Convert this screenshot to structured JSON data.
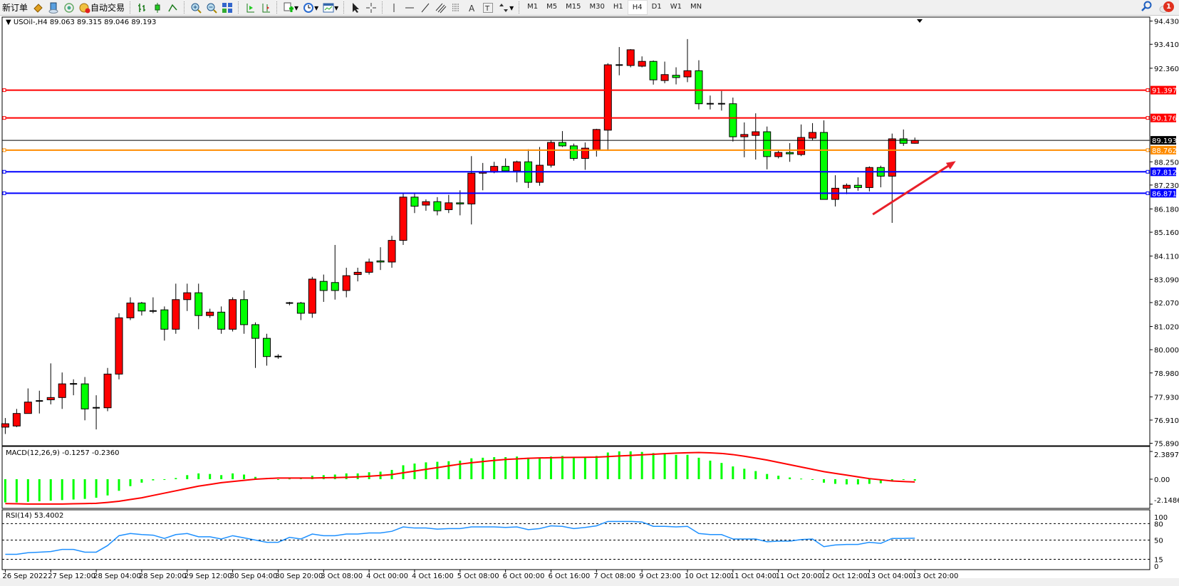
{
  "toolbar": {
    "new_order_label": "新订单",
    "auto_trading_label": "自动交易",
    "icons": [
      "market-watch-icon",
      "data-window-icon",
      "signals-icon",
      "bar-chart-icon",
      "candlestick-chart-icon",
      "line-chart-icon",
      "zoom-in-icon",
      "zoom-out-icon",
      "tile-windows-icon",
      "auto-scroll-icon",
      "chart-shift-icon",
      "indicators-icon",
      "periods-icon",
      "templates-icon",
      "cursor-icon",
      "crosshair-icon",
      "vertical-line-icon",
      "horizontal-line-icon",
      "trendline-icon",
      "equidistant-channel-icon",
      "fibonacci-icon",
      "text-icon",
      "text-label-icon",
      "arrows-icon"
    ],
    "timeframes": [
      "M1",
      "M5",
      "M15",
      "M30",
      "H1",
      "H4",
      "D1",
      "W1",
      "MN"
    ],
    "active_timeframe": "H4",
    "notification_count": "1"
  },
  "chart": {
    "header": "USOil-,H4  89.063 89.315 89.046 89.193",
    "colors": {
      "bull": "#ff0000",
      "bear": "#00ff00",
      "outline": "#000000"
    },
    "price_ticks": [
      "94.430",
      "93.410",
      "92.360",
      "88.250",
      "87.230",
      "86.180",
      "85.160",
      "84.110",
      "83.090",
      "82.070",
      "81.020",
      "80.000",
      "78.980",
      "77.930",
      "76.910",
      "75.890"
    ],
    "price_range": [
      75.89,
      94.43
    ],
    "levels": [
      {
        "price": 91.397,
        "label": "91.397",
        "color": "#ff0000"
      },
      {
        "price": 90.176,
        "label": "90.176",
        "color": "#ff0000"
      },
      {
        "price": 89.193,
        "label": "89.193",
        "color": "#000000"
      },
      {
        "price": 88.762,
        "label": "88.762",
        "color": "#ff8c00"
      },
      {
        "price": 87.812,
        "label": "87.812",
        "color": "#0000ff"
      },
      {
        "price": 86.871,
        "label": "86.871",
        "color": "#0000ff"
      }
    ],
    "arrow_color": "#e8202a",
    "time_labels": [
      "26 Sep 2022",
      "27 Sep 12:00",
      "28 Sep 04:00",
      "28 Sep 20:00",
      "29 Sep 12:00",
      "30 Sep 04:00",
      "30 Sep 20:00",
      "3 Oct 08:00",
      "4 Oct 00:00",
      "4 Oct 16:00",
      "5 Oct 08:00",
      "6 Oct 00:00",
      "6 Oct 16:00",
      "7 Oct 08:00",
      "9 Oct 23:00",
      "10 Oct 12:00",
      "11 Oct 04:00",
      "11 Oct 20:00",
      "12 Oct 12:00",
      "13 Oct 04:00",
      "13 Oct 20:00"
    ]
  },
  "chart_data": {
    "type": "candlestick",
    "symbol": "USOil-",
    "timeframe": "H4",
    "ohlc_format": [
      "open",
      "high",
      "low",
      "close"
    ],
    "ohlc": [
      [
        76.6,
        77.0,
        76.3,
        76.75
      ],
      [
        76.65,
        77.4,
        76.6,
        77.2
      ],
      [
        77.2,
        78.3,
        77.2,
        77.7
      ],
      [
        77.75,
        78.2,
        77.2,
        77.75
      ],
      [
        77.8,
        79.4,
        77.6,
        77.9
      ],
      [
        77.9,
        79.0,
        77.4,
        78.5
      ],
      [
        78.5,
        78.7,
        78.0,
        78.5
      ],
      [
        78.5,
        78.8,
        76.9,
        77.4
      ],
      [
        77.45,
        78.0,
        76.5,
        77.45
      ],
      [
        77.45,
        79.2,
        77.3,
        78.93
      ],
      [
        78.93,
        81.6,
        78.7,
        81.4
      ],
      [
        81.4,
        82.3,
        81.3,
        82.05
      ],
      [
        82.05,
        82.1,
        81.5,
        81.7
      ],
      [
        81.7,
        82.3,
        81.6,
        81.7
      ],
      [
        81.75,
        81.9,
        80.4,
        80.9
      ],
      [
        80.9,
        82.9,
        80.7,
        82.2
      ],
      [
        82.2,
        82.9,
        81.7,
        82.5
      ],
      [
        82.5,
        82.9,
        80.9,
        81.5
      ],
      [
        81.5,
        81.8,
        81.4,
        81.65
      ],
      [
        81.65,
        81.9,
        80.7,
        80.9
      ],
      [
        80.9,
        82.3,
        80.8,
        82.2
      ],
      [
        82.2,
        82.6,
        80.7,
        81.1
      ],
      [
        81.1,
        81.2,
        79.2,
        80.5
      ],
      [
        80.5,
        80.7,
        79.3,
        79.7
      ],
      [
        79.7,
        79.8,
        79.6,
        79.7
      ],
      [
        82.05,
        82.1,
        81.95,
        82.05
      ],
      [
        82.05,
        82.1,
        81.3,
        81.6
      ],
      [
        81.6,
        83.2,
        81.4,
        83.1
      ],
      [
        83.0,
        83.3,
        82.1,
        82.6
      ],
      [
        82.95,
        84.6,
        82.2,
        82.6
      ],
      [
        82.6,
        83.6,
        82.3,
        83.25
      ],
      [
        83.3,
        83.6,
        83.0,
        83.4
      ],
      [
        83.4,
        84.0,
        83.3,
        83.85
      ],
      [
        83.9,
        84.5,
        83.5,
        83.85
      ],
      [
        83.85,
        85.0,
        83.6,
        84.8
      ],
      [
        84.8,
        86.9,
        84.6,
        86.7
      ],
      [
        86.7,
        86.9,
        86.0,
        86.3
      ],
      [
        86.35,
        86.6,
        86.1,
        86.5
      ],
      [
        86.5,
        86.7,
        85.9,
        86.1
      ],
      [
        86.15,
        86.8,
        86.0,
        86.45
      ],
      [
        86.45,
        87.0,
        85.9,
        86.4
      ],
      [
        86.4,
        88.5,
        85.5,
        87.75
      ],
      [
        87.75,
        88.2,
        87.0,
        87.8
      ],
      [
        87.8,
        88.25,
        87.75,
        88.05
      ],
      [
        88.05,
        88.4,
        87.8,
        87.85
      ],
      [
        87.85,
        88.3,
        87.35,
        88.25
      ],
      [
        88.25,
        88.8,
        87.1,
        87.35
      ],
      [
        87.35,
        88.9,
        87.2,
        88.1
      ],
      [
        88.1,
        89.2,
        88.0,
        89.1
      ],
      [
        89.1,
        89.6,
        88.9,
        88.95
      ],
      [
        88.95,
        89.05,
        88.3,
        88.4
      ],
      [
        88.4,
        89.1,
        87.9,
        88.85
      ],
      [
        88.78,
        89.7,
        88.48,
        89.67
      ],
      [
        89.64,
        92.58,
        88.73,
        92.51
      ],
      [
        92.5,
        93.29,
        92.05,
        92.5
      ],
      [
        92.48,
        93.2,
        92.4,
        93.17
      ],
      [
        92.45,
        92.88,
        92.4,
        92.66
      ],
      [
        92.66,
        92.7,
        91.64,
        91.85
      ],
      [
        91.82,
        92.65,
        91.7,
        92.08
      ],
      [
        92.05,
        92.4,
        91.65,
        91.95
      ],
      [
        91.98,
        93.64,
        91.75,
        92.25
      ],
      [
        92.25,
        92.71,
        90.55,
        90.8
      ],
      [
        90.8,
        91.16,
        90.55,
        90.8
      ],
      [
        90.8,
        91.36,
        90.5,
        90.8
      ],
      [
        90.8,
        91.07,
        89.14,
        89.35
      ],
      [
        89.35,
        89.98,
        88.45,
        89.45
      ],
      [
        89.41,
        90.38,
        88.35,
        89.57
      ],
      [
        89.57,
        89.8,
        87.92,
        88.48
      ],
      [
        88.48,
        88.75,
        88.4,
        88.66
      ],
      [
        88.66,
        89.07,
        88.25,
        88.6
      ],
      [
        88.57,
        89.89,
        88.5,
        89.32
      ],
      [
        89.29,
        89.95,
        89.2,
        89.54
      ],
      [
        89.54,
        90.07,
        86.6,
        86.6
      ],
      [
        86.6,
        87.66,
        86.29,
        87.09
      ],
      [
        87.09,
        87.3,
        86.83,
        87.22
      ],
      [
        87.22,
        87.57,
        86.98,
        87.12
      ],
      [
        87.12,
        88.05,
        86.95,
        88.0
      ],
      [
        88.0,
        88.08,
        87.13,
        87.62
      ],
      [
        87.62,
        89.49,
        85.57,
        89.26
      ],
      [
        89.26,
        89.67,
        88.95,
        89.063
      ],
      [
        89.063,
        89.315,
        89.046,
        89.193
      ]
    ],
    "macd": {
      "title": "MACD(12,26,9) -0.1257 -0.2360",
      "ticks": [
        "2.3897",
        "0.00",
        "-2.1486"
      ],
      "range": [
        -2.1486,
        2.3897
      ],
      "histogram_color": "#00ff00",
      "signal_color": "#ff0000",
      "histogram": [
        -2.0,
        -2.0,
        -1.95,
        -1.9,
        -1.85,
        -1.8,
        -1.75,
        -1.7,
        -1.6,
        -1.4,
        -1.0,
        -0.6,
        -0.3,
        -0.1,
        0.0,
        0.1,
        0.35,
        0.5,
        0.45,
        0.35,
        0.5,
        0.4,
        0.2,
        0.1,
        0.0,
        0.05,
        0.1,
        0.3,
        0.35,
        0.4,
        0.5,
        0.5,
        0.6,
        0.65,
        0.8,
        1.2,
        1.35,
        1.45,
        1.5,
        1.55,
        1.6,
        1.8,
        1.85,
        1.9,
        1.9,
        1.95,
        1.85,
        1.85,
        1.95,
        2.0,
        1.9,
        1.9,
        2.0,
        2.3,
        2.4,
        2.4,
        2.35,
        2.25,
        2.2,
        2.1,
        2.1,
        1.85,
        1.6,
        1.4,
        1.1,
        0.9,
        0.7,
        0.45,
        0.3,
        0.15,
        0.05,
        0.0,
        -0.3,
        -0.4,
        -0.45,
        -0.45,
        -0.4,
        -0.35,
        -0.15,
        -0.05,
        -0.1257
      ],
      "signal": [
        -2.1,
        -2.12,
        -2.14,
        -2.14,
        -2.14,
        -2.14,
        -2.12,
        -2.1,
        -2.08,
        -2.0,
        -1.9,
        -1.75,
        -1.6,
        -1.4,
        -1.2,
        -1.0,
        -0.8,
        -0.6,
        -0.45,
        -0.3,
        -0.2,
        -0.1,
        0.0,
        0.05,
        0.1,
        0.1,
        0.1,
        0.1,
        0.12,
        0.14,
        0.16,
        0.2,
        0.25,
        0.32,
        0.4,
        0.55,
        0.7,
        0.85,
        1.0,
        1.15,
        1.3,
        1.42,
        1.52,
        1.62,
        1.7,
        1.75,
        1.8,
        1.83,
        1.85,
        1.87,
        1.88,
        1.89,
        1.9,
        1.95,
        2.0,
        2.05,
        2.1,
        2.15,
        2.2,
        2.25,
        2.28,
        2.3,
        2.27,
        2.22,
        2.12,
        1.98,
        1.82,
        1.65,
        1.45,
        1.25,
        1.05,
        0.85,
        0.65,
        0.5,
        0.35,
        0.2,
        0.05,
        -0.05,
        -0.15,
        -0.2,
        -0.236
      ]
    },
    "rsi": {
      "title": "RSI(14) 53.4002",
      "ticks": [
        "100",
        "80",
        "50",
        "15",
        "0"
      ],
      "levels": [
        80,
        50,
        15
      ],
      "range": [
        0,
        100
      ],
      "color": "#1e90ff",
      "values": [
        24,
        24,
        27,
        28,
        29,
        33,
        33,
        28,
        28,
        40,
        58,
        62,
        60,
        59,
        53,
        60,
        62,
        56,
        56,
        52,
        58,
        54,
        50,
        46,
        46,
        55,
        52,
        61,
        58,
        58,
        61,
        61,
        63,
        63,
        66,
        74,
        72,
        72,
        70,
        71,
        71,
        74,
        74,
        74,
        73,
        74,
        69,
        71,
        76,
        75,
        71,
        73,
        76,
        84,
        84,
        84,
        83,
        75,
        75,
        74,
        75,
        62,
        60,
        60,
        52,
        52,
        52,
        47,
        48,
        48,
        51,
        52,
        38,
        41,
        42,
        42,
        46,
        44,
        53,
        53,
        53.4
      ]
    }
  }
}
